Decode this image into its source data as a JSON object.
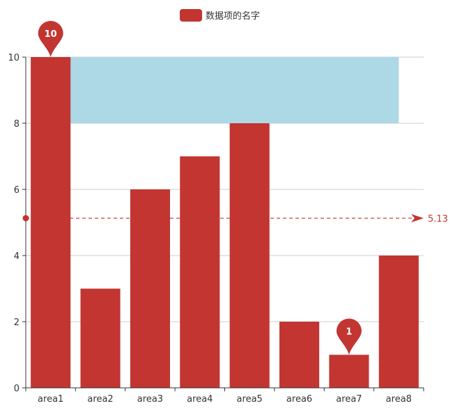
{
  "chart_data": {
    "type": "bar",
    "legend": {
      "label": "数据项的名字",
      "position": "top-center"
    },
    "categories": [
      "area1",
      "area2",
      "area3",
      "area4",
      "area5",
      "area6",
      "area7",
      "area8"
    ],
    "series": [
      {
        "name": "数据项的名字",
        "values": [
          10,
          3,
          6,
          7,
          8,
          2,
          1,
          4
        ]
      }
    ],
    "ylim": [
      0,
      10
    ],
    "yticks": [
      0,
      2,
      4,
      6,
      8,
      10
    ],
    "grid": true,
    "mark_points": [
      {
        "label": "10",
        "category": "area1",
        "value": 10
      },
      {
        "label": "1",
        "category": "area7",
        "value": 1
      }
    ],
    "mark_line": {
      "label": "5.13",
      "value": 5.13
    },
    "mark_area": {
      "from_category": "area1",
      "to_category": "area8",
      "y_from": 8,
      "y_to": 10,
      "color": "#add8e6"
    },
    "colors": {
      "bar": "#c23531",
      "axis": "#333333",
      "grid": "#cccccc",
      "text": "#333333"
    }
  }
}
